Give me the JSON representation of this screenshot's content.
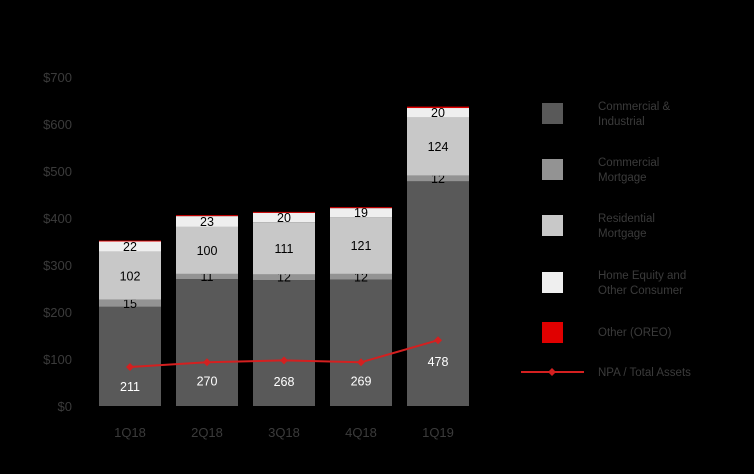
{
  "chart_data": {
    "type": "bar",
    "stacked": true,
    "categories": [
      "1Q18",
      "2Q18",
      "3Q18",
      "4Q18",
      "1Q19"
    ],
    "series": [
      {
        "name": "Commercial & Industrial",
        "color": "#595959",
        "label_color": "#ffffff",
        "values": [
          211,
          270,
          268,
          269,
          478
        ],
        "labels": [
          "211",
          "270",
          "268",
          "269",
          "478"
        ]
      },
      {
        "name": "Commercial Mortgage",
        "color": "#939393",
        "label_color": "#000000",
        "values": [
          15,
          11,
          12,
          12,
          12
        ],
        "labels": [
          "15",
          "11",
          "12",
          "12",
          "12"
        ]
      },
      {
        "name": "Residential Mortgage",
        "color": "#c8c8c8",
        "label_color": "#000000",
        "values": [
          102,
          100,
          111,
          121,
          124
        ],
        "labels": [
          "102",
          "100",
          "111",
          "121",
          "124"
        ]
      },
      {
        "name": "Home Equity and Other Consumer",
        "color": "#efefef",
        "label_color": "#000000",
        "values": [
          22,
          23,
          20,
          19,
          20
        ],
        "labels": [
          "22",
          "23",
          "20",
          "19",
          "20"
        ]
      },
      {
        "name": "Other (OREO)",
        "color": "#e00000",
        "label_color": "#000000",
        "values": [
          2,
          2,
          2,
          2,
          3
        ],
        "labels": [
          "",
          "",
          "",
          "",
          ""
        ]
      }
    ],
    "line": {
      "name": "NPA / Total Assets",
      "color": "#d42020",
      "values": [
        83,
        93,
        97,
        93,
        140
      ]
    },
    "yticks": [
      "$0",
      "$100",
      "$200",
      "$300",
      "$400",
      "$500",
      "$600",
      "$700"
    ],
    "ylim": [
      0,
      700
    ],
    "grid": false,
    "legend_position": "right",
    "legend": [
      {
        "label_lines": [
          "Commercial &",
          "Industrial"
        ],
        "color": "#595959",
        "kind": "box"
      },
      {
        "label_lines": [
          "Commercial",
          "Mortgage"
        ],
        "color": "#939393",
        "kind": "box"
      },
      {
        "label_lines": [
          "Residential",
          "Mortgage"
        ],
        "color": "#c8c8c8",
        "kind": "box"
      },
      {
        "label_lines": [
          "Home Equity and",
          "Other Consumer"
        ],
        "color": "#efefef",
        "kind": "box"
      },
      {
        "label_lines": [
          "Other (OREO)"
        ],
        "color": "#e00000",
        "kind": "box"
      },
      {
        "label_lines": [
          "NPA / Total Assets"
        ],
        "color": "#d42020",
        "kind": "line"
      }
    ]
  }
}
